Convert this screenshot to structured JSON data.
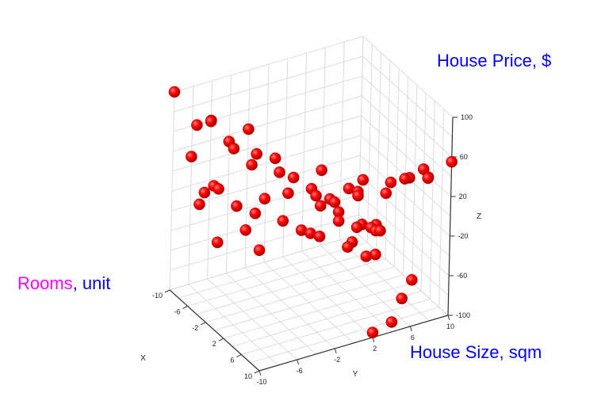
{
  "annotations": {
    "price_text": "House Price, $",
    "rooms_part1": "Rooms",
    "rooms_part2": ", unit",
    "size_text": "House Size, sqm"
  },
  "colors": {
    "price_annotation": "#0000ff",
    "rooms_word": "#ff00ff",
    "unit_word": "#0000ff",
    "size_annotation": "#0000ff",
    "marker": "#ff0000",
    "grid": "#dcdcdc"
  },
  "chart_data": {
    "type": "scatter",
    "projection": "3d",
    "marker": "sphere",
    "title": "",
    "xlabel": "X",
    "ylabel": "Y",
    "zlabel": "Z",
    "xlim": [
      -10,
      10
    ],
    "ylim": [
      -10,
      10
    ],
    "zlim": [
      -100,
      100
    ],
    "x_ticks": [
      "-10",
      "-6",
      "-2",
      "2",
      "6",
      "10"
    ],
    "y_ticks": [
      "-10",
      "-6",
      "-2",
      "2",
      "6",
      "10"
    ],
    "z_ticks": [
      "-100",
      "-60",
      "-20",
      "20",
      "60",
      "100"
    ],
    "grid": true,
    "points": [
      {
        "x": -10,
        "y": -10,
        "z": 100
      },
      {
        "x": -9,
        "y": -8,
        "z": 65
      },
      {
        "x": -8,
        "y": -7,
        "z": 70
      },
      {
        "x": -8,
        "y": -9,
        "z": 40
      },
      {
        "x": -10,
        "y": -6,
        "z": 60
      },
      {
        "x": -6,
        "y": -6,
        "z": 55
      },
      {
        "x": -10,
        "y": -2,
        "z": 40
      },
      {
        "x": -9,
        "y": -4,
        "z": 30
      },
      {
        "x": -5,
        "y": -4,
        "z": 30
      },
      {
        "x": -4,
        "y": -4,
        "z": 45
      },
      {
        "x": -4,
        "y": -2,
        "z": 35
      },
      {
        "x": -3,
        "y": -2,
        "z": 25
      },
      {
        "x": -5,
        "y": -8,
        "z": 20
      },
      {
        "x": -6,
        "y": -7,
        "z": 10
      },
      {
        "x": -7,
        "y": -8,
        "z": 5
      },
      {
        "x": -6,
        "y": -9,
        "z": 0
      },
      {
        "x": -4,
        "y": -6,
        "z": -2
      },
      {
        "x": -2,
        "y": -4,
        "z": 8
      },
      {
        "x": -1,
        "y": -2,
        "z": 12
      },
      {
        "x": 0,
        "y": 0,
        "z": 15
      },
      {
        "x": 1,
        "y": 0,
        "z": 12
      },
      {
        "x": 2,
        "y": 1,
        "z": 10
      },
      {
        "x": 2,
        "y": 3,
        "z": 15
      },
      {
        "x": 4,
        "y": 3,
        "z": 20
      },
      {
        "x": 3,
        "y": 4,
        "z": 25
      },
      {
        "x": 5,
        "y": 6,
        "z": 25
      },
      {
        "x": 6,
        "y": 7,
        "z": 30
      },
      {
        "x": 7,
        "y": 7,
        "z": 35
      },
      {
        "x": 8,
        "y": 8,
        "z": 45
      },
      {
        "x": 10,
        "y": 10,
        "z": 55
      },
      {
        "x": 9,
        "y": 8,
        "z": 40
      },
      {
        "x": 7,
        "y": 9,
        "z": 30
      },
      {
        "x": 4,
        "y": 6,
        "z": 10
      },
      {
        "x": 2,
        "y": 4,
        "z": 5
      },
      {
        "x": 1,
        "y": 2,
        "z": 0
      },
      {
        "x": 0,
        "y": 1,
        "z": -5
      },
      {
        "x": 2,
        "y": 2,
        "z": -15
      },
      {
        "x": 3,
        "y": 4,
        "z": -20
      },
      {
        "x": 4,
        "y": 5,
        "z": -25
      },
      {
        "x": 3,
        "y": 3,
        "z": -35
      },
      {
        "x": 0,
        "y": 0,
        "z": -30
      },
      {
        "x": -2,
        "y": -2,
        "z": -20
      },
      {
        "x": -4,
        "y": -4,
        "z": -15
      },
      {
        "x": -2,
        "y": 0,
        "z": -35
      },
      {
        "x": 2,
        "y": 0,
        "z": -25
      },
      {
        "x": 5,
        "y": 4,
        "z": -15
      },
      {
        "x": 7,
        "y": 4,
        "z": -10
      },
      {
        "x": 2,
        "y": 6,
        "z": -30
      },
      {
        "x": -6,
        "y": -4,
        "z": -40
      },
      {
        "x": -8,
        "y": -6,
        "z": -55
      },
      {
        "x": 0,
        "y": 4,
        "z": -55
      },
      {
        "x": 2,
        "y": 6,
        "z": -60
      },
      {
        "x": -7,
        "y": -2,
        "z": -70
      },
      {
        "x": 0,
        "y": 6,
        "z": -70
      },
      {
        "x": 6,
        "y": 8,
        "z": -75
      },
      {
        "x": 8,
        "y": 6,
        "z": -80
      },
      {
        "x": 10,
        "y": 4,
        "z": -90
      },
      {
        "x": 10,
        "y": 2,
        "z": -95
      },
      {
        "x": -4,
        "y": 0,
        "z": 10
      },
      {
        "x": -2,
        "y": 2,
        "z": 20
      },
      {
        "x": 6,
        "y": 2,
        "z": -5
      },
      {
        "x": 4,
        "y": 1,
        "z": 5
      }
    ]
  }
}
